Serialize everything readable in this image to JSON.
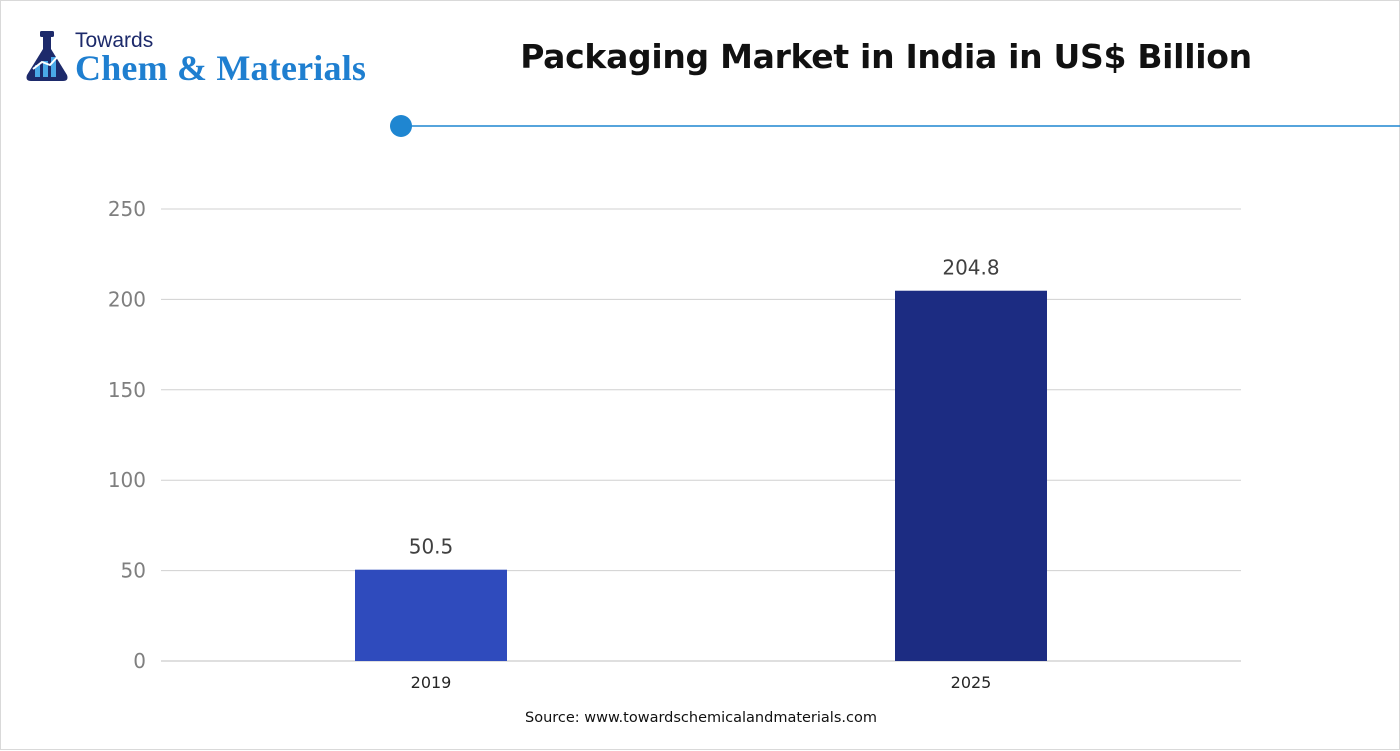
{
  "logo": {
    "line1": "Towards",
    "line2": "Chem & Materials"
  },
  "title": "Packaging Market in India in US$ Billion",
  "source": "Source: www.towardschemicalandmaterials.com",
  "colors": {
    "accent": "#1f86d1",
    "bar_2019": "#2f4bbd",
    "bar_2025": "#1c2c82",
    "grid": "#d0d0d0",
    "tick_text": "#7f7f7f",
    "label_text": "#404040"
  },
  "chart_data": {
    "type": "bar",
    "categories": [
      "2019",
      "2025"
    ],
    "values": [
      50.5,
      204.8
    ],
    "data_labels": [
      "50.5",
      "204.8"
    ],
    "title": "Packaging Market in India in US$ Billion",
    "xlabel": "",
    "ylabel": "",
    "ylim": [
      0,
      250
    ],
    "yticks": [
      0,
      50,
      100,
      150,
      200,
      250
    ],
    "grid": true,
    "legend": "none"
  }
}
